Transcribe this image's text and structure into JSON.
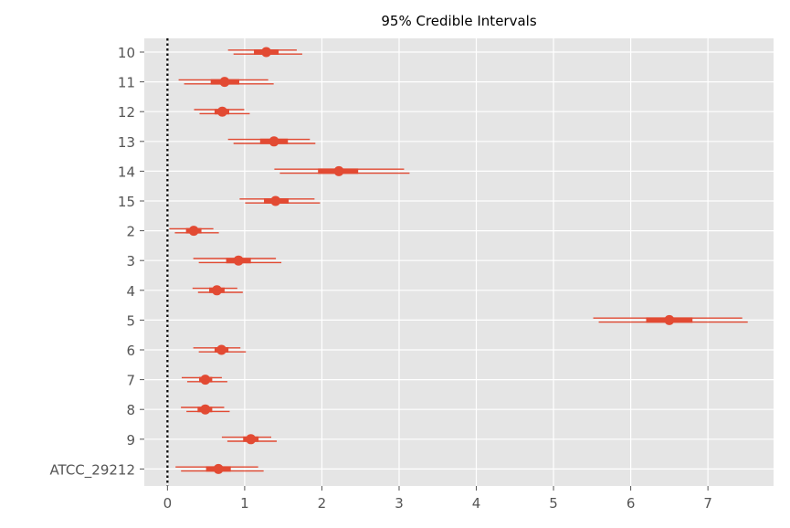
{
  "chart_data": {
    "type": "forest",
    "title": "95% Credible Intervals",
    "xlabel": "",
    "ylabel": "",
    "xlim": [
      -0.3,
      7.85
    ],
    "xticks": [
      0,
      1,
      2,
      3,
      4,
      5,
      6,
      7
    ],
    "grid": true,
    "reference_line": 0,
    "colors": {
      "series": "#E24A33",
      "panel": "#E5E5E5",
      "grid": "#FFFFFF",
      "reference": "#000000"
    },
    "categories": [
      "10",
      "11",
      "12",
      "13",
      "14",
      "15",
      "2",
      "3",
      "4",
      "5",
      "6",
      "7",
      "8",
      "9",
      "ATCC_29212"
    ],
    "series": [
      {
        "median": 1.28,
        "iqr": [
          1.12,
          1.44
        ],
        "interval": [
          0.82,
          1.71
        ]
      },
      {
        "median": 0.74,
        "iqr": [
          0.56,
          0.93
        ],
        "interval": [
          0.18,
          1.34
        ]
      },
      {
        "median": 0.71,
        "iqr": [
          0.61,
          0.8
        ],
        "interval": [
          0.38,
          1.03
        ]
      },
      {
        "median": 1.38,
        "iqr": [
          1.2,
          1.56
        ],
        "interval": [
          0.82,
          1.88
        ]
      },
      {
        "median": 2.22,
        "iqr": [
          1.95,
          2.47
        ],
        "interval": [
          1.42,
          3.1
        ]
      },
      {
        "median": 1.4,
        "iqr": [
          1.25,
          1.57
        ],
        "interval": [
          0.97,
          1.94
        ]
      },
      {
        "median": 0.34,
        "iqr": [
          0.24,
          0.44
        ],
        "interval": [
          0.06,
          0.63
        ]
      },
      {
        "median": 0.92,
        "iqr": [
          0.76,
          1.08
        ],
        "interval": [
          0.37,
          1.44
        ]
      },
      {
        "median": 0.64,
        "iqr": [
          0.54,
          0.74
        ],
        "interval": [
          0.36,
          0.94
        ]
      },
      {
        "median": 6.5,
        "iqr": [
          6.2,
          6.8
        ],
        "interval": [
          5.55,
          7.48
        ]
      },
      {
        "median": 0.7,
        "iqr": [
          0.61,
          0.79
        ],
        "interval": [
          0.37,
          0.98
        ]
      },
      {
        "median": 0.49,
        "iqr": [
          0.41,
          0.58
        ],
        "interval": [
          0.22,
          0.74
        ]
      },
      {
        "median": 0.49,
        "iqr": [
          0.39,
          0.58
        ],
        "interval": [
          0.21,
          0.77
        ]
      },
      {
        "median": 1.08,
        "iqr": [
          0.98,
          1.18
        ],
        "interval": [
          0.74,
          1.38
        ]
      },
      {
        "median": 0.66,
        "iqr": [
          0.5,
          0.82
        ],
        "interval": [
          0.14,
          1.21
        ]
      }
    ]
  }
}
